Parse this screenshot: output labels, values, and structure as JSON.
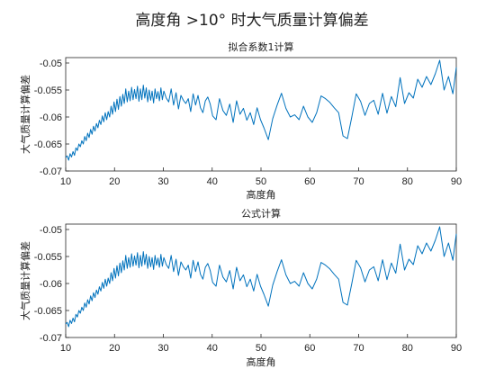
{
  "figure": {
    "title": "高度角 >10° 时大气质量计算偏差"
  },
  "colors": {
    "series": "#0072BD",
    "grid": "#e3e3e3",
    "axes": "#262626",
    "text": "#222222"
  },
  "chart_data": [
    {
      "type": "line",
      "title": "拟合系数1计算",
      "xlabel": "高度角",
      "ylabel": "大气质量计算偏差",
      "xlim": [
        10,
        90
      ],
      "ylim": [
        -0.07,
        -0.049
      ],
      "xticks": [
        "10",
        "20",
        "30",
        "40",
        "50",
        "60",
        "70",
        "80",
        "90"
      ],
      "yticks": [
        "-0.05",
        "-0.055",
        "-0.06",
        "-0.065",
        "-0.07"
      ],
      "grid": true,
      "series": [
        {
          "x": [
            10,
            10.3,
            10.6,
            10.9,
            11.2,
            11.5,
            11.8,
            12.1,
            12.4,
            12.7,
            13,
            13.3,
            13.6,
            13.9,
            14.2,
            14.5,
            14.8,
            15.1,
            15.4,
            15.7,
            16,
            16.3,
            16.6,
            16.9,
            17.2,
            17.5,
            17.8,
            18.1,
            18.4,
            18.7,
            19,
            19.3,
            19.6,
            19.9,
            20.2,
            20.5,
            20.8,
            21.1,
            21.4,
            21.7,
            22,
            22.3,
            22.6,
            22.9,
            23.2,
            23.5,
            23.8,
            24.1,
            24.4,
            24.7,
            25,
            25.3,
            25.6,
            25.9,
            26.2,
            26.5,
            26.8,
            27.1,
            27.4,
            27.7,
            28,
            28.3,
            28.6,
            28.9,
            29.2,
            29.5,
            29.8,
            30.1,
            30.6,
            31.1,
            31.6,
            32.1,
            32.6,
            33.1,
            33.6,
            34.1,
            34.6,
            35.1,
            35.6,
            36.1,
            36.6,
            37.1,
            37.6,
            38.1,
            38.6,
            39.1,
            39.6,
            40.1,
            40.8,
            41.5,
            42.2,
            42.9,
            43.6,
            44.3,
            45,
            45.7,
            46.4,
            47.1,
            47.8,
            48.5,
            49.2,
            49.9,
            50.6,
            51.5,
            52.4,
            53.3,
            54.2,
            55.1,
            56,
            56.9,
            57.8,
            58.7,
            59.6,
            60.5,
            61.4,
            62.3,
            63.2,
            64.1,
            65,
            65.9,
            66.8,
            67.7,
            68.6,
            69.5,
            70.4,
            71.3,
            72.2,
            73.1,
            74,
            74.9,
            75.8,
            76.7,
            77.6,
            78.5,
            79.4,
            80.3,
            81.2,
            82.1,
            83,
            83.9,
            84.8,
            85.7,
            86.6,
            87.5,
            88.4,
            89.3,
            90
          ],
          "y": [
            -0.0675,
            -0.0672,
            -0.068,
            -0.0668,
            -0.0674,
            -0.0664,
            -0.0671,
            -0.0657,
            -0.0662,
            -0.065,
            -0.0655,
            -0.0644,
            -0.065,
            -0.0636,
            -0.0644,
            -0.063,
            -0.0638,
            -0.0623,
            -0.0632,
            -0.0617,
            -0.0626,
            -0.0612,
            -0.062,
            -0.0606,
            -0.0614,
            -0.0598,
            -0.0609,
            -0.0592,
            -0.0605,
            -0.059,
            -0.06,
            -0.058,
            -0.0595,
            -0.0572,
            -0.059,
            -0.0567,
            -0.0586,
            -0.0562,
            -0.058,
            -0.0558,
            -0.0575,
            -0.0548,
            -0.0572,
            -0.0552,
            -0.057,
            -0.0545,
            -0.0568,
            -0.0549,
            -0.0566,
            -0.0543,
            -0.0571,
            -0.0548,
            -0.0568,
            -0.0541,
            -0.0565,
            -0.0546,
            -0.0572,
            -0.055,
            -0.0569,
            -0.0552,
            -0.0574,
            -0.0548,
            -0.0566,
            -0.0553,
            -0.057,
            -0.0546,
            -0.0568,
            -0.0552,
            -0.0565,
            -0.0572,
            -0.0548,
            -0.0578,
            -0.0555,
            -0.0585,
            -0.056,
            -0.0569,
            -0.0575,
            -0.0566,
            -0.059,
            -0.0557,
            -0.0578,
            -0.056,
            -0.0583,
            -0.0592,
            -0.057,
            -0.0563,
            -0.0576,
            -0.0598,
            -0.0605,
            -0.0566,
            -0.0588,
            -0.0597,
            -0.0576,
            -0.061,
            -0.057,
            -0.0595,
            -0.0584,
            -0.0606,
            -0.0592,
            -0.0614,
            -0.0583,
            -0.0605,
            -0.062,
            -0.0642,
            -0.0603,
            -0.0578,
            -0.0556,
            -0.0584,
            -0.06,
            -0.0596,
            -0.0605,
            -0.058,
            -0.06,
            -0.061,
            -0.0592,
            -0.0561,
            -0.0566,
            -0.0573,
            -0.0583,
            -0.0592,
            -0.0635,
            -0.064,
            -0.06,
            -0.0557,
            -0.0571,
            -0.0597,
            -0.0575,
            -0.0569,
            -0.0595,
            -0.0556,
            -0.0593,
            -0.0562,
            -0.0581,
            -0.0527,
            -0.0575,
            -0.0555,
            -0.0565,
            -0.053,
            -0.0545,
            -0.0525,
            -0.054,
            -0.052,
            -0.0495,
            -0.055,
            -0.0525,
            -0.0557,
            -0.0508
          ]
        }
      ]
    },
    {
      "type": "line",
      "title": "公式计算",
      "xlabel": "高度角",
      "ylabel": "大气质量计算偏差",
      "xlim": [
        10,
        90
      ],
      "ylim": [
        -0.07,
        -0.049
      ],
      "xticks": [
        "10",
        "20",
        "30",
        "40",
        "50",
        "60",
        "70",
        "80",
        "90"
      ],
      "yticks": [
        "-0.05",
        "-0.055",
        "-0.06",
        "-0.065",
        "-0.07"
      ],
      "grid": true,
      "series": [
        {
          "x": [
            10,
            10.3,
            10.6,
            10.9,
            11.2,
            11.5,
            11.8,
            12.1,
            12.4,
            12.7,
            13,
            13.3,
            13.6,
            13.9,
            14.2,
            14.5,
            14.8,
            15.1,
            15.4,
            15.7,
            16,
            16.3,
            16.6,
            16.9,
            17.2,
            17.5,
            17.8,
            18.1,
            18.4,
            18.7,
            19,
            19.3,
            19.6,
            19.9,
            20.2,
            20.5,
            20.8,
            21.1,
            21.4,
            21.7,
            22,
            22.3,
            22.6,
            22.9,
            23.2,
            23.5,
            23.8,
            24.1,
            24.4,
            24.7,
            25,
            25.3,
            25.6,
            25.9,
            26.2,
            26.5,
            26.8,
            27.1,
            27.4,
            27.7,
            28,
            28.3,
            28.6,
            28.9,
            29.2,
            29.5,
            29.8,
            30.1,
            30.6,
            31.1,
            31.6,
            32.1,
            32.6,
            33.1,
            33.6,
            34.1,
            34.6,
            35.1,
            35.6,
            36.1,
            36.6,
            37.1,
            37.6,
            38.1,
            38.6,
            39.1,
            39.6,
            40.1,
            40.8,
            41.5,
            42.2,
            42.9,
            43.6,
            44.3,
            45,
            45.7,
            46.4,
            47.1,
            47.8,
            48.5,
            49.2,
            49.9,
            50.6,
            51.5,
            52.4,
            53.3,
            54.2,
            55.1,
            56,
            56.9,
            57.8,
            58.7,
            59.6,
            60.5,
            61.4,
            62.3,
            63.2,
            64.1,
            65,
            65.9,
            66.8,
            67.7,
            68.6,
            69.5,
            70.4,
            71.3,
            72.2,
            73.1,
            74,
            74.9,
            75.8,
            76.7,
            77.6,
            78.5,
            79.4,
            80.3,
            81.2,
            82.1,
            83,
            83.9,
            84.8,
            85.7,
            86.6,
            87.5,
            88.4,
            89.3,
            90
          ],
          "y": [
            -0.0675,
            -0.0672,
            -0.068,
            -0.0668,
            -0.0674,
            -0.0664,
            -0.0671,
            -0.0657,
            -0.0662,
            -0.065,
            -0.0655,
            -0.0644,
            -0.065,
            -0.0636,
            -0.0644,
            -0.063,
            -0.0638,
            -0.0623,
            -0.0632,
            -0.0617,
            -0.0626,
            -0.0612,
            -0.062,
            -0.0606,
            -0.0614,
            -0.0598,
            -0.0609,
            -0.0592,
            -0.0605,
            -0.059,
            -0.06,
            -0.058,
            -0.0595,
            -0.0572,
            -0.059,
            -0.0567,
            -0.0586,
            -0.0562,
            -0.058,
            -0.0558,
            -0.0575,
            -0.0548,
            -0.0572,
            -0.0552,
            -0.057,
            -0.0545,
            -0.0568,
            -0.0549,
            -0.0566,
            -0.0543,
            -0.0571,
            -0.0548,
            -0.0568,
            -0.0541,
            -0.0565,
            -0.0546,
            -0.0572,
            -0.055,
            -0.0569,
            -0.0552,
            -0.0574,
            -0.0548,
            -0.0566,
            -0.0553,
            -0.057,
            -0.0546,
            -0.0568,
            -0.0552,
            -0.0565,
            -0.0572,
            -0.0548,
            -0.0578,
            -0.0555,
            -0.0585,
            -0.056,
            -0.0569,
            -0.0575,
            -0.0566,
            -0.059,
            -0.0557,
            -0.0578,
            -0.056,
            -0.0583,
            -0.0592,
            -0.057,
            -0.0563,
            -0.0576,
            -0.0598,
            -0.0605,
            -0.0566,
            -0.0588,
            -0.0597,
            -0.0576,
            -0.061,
            -0.057,
            -0.0595,
            -0.0584,
            -0.0606,
            -0.0592,
            -0.0614,
            -0.0583,
            -0.0605,
            -0.062,
            -0.0642,
            -0.0603,
            -0.0578,
            -0.0556,
            -0.0584,
            -0.06,
            -0.0596,
            -0.0605,
            -0.058,
            -0.06,
            -0.061,
            -0.0592,
            -0.0561,
            -0.0566,
            -0.0573,
            -0.0583,
            -0.0592,
            -0.0635,
            -0.064,
            -0.06,
            -0.0557,
            -0.0571,
            -0.0597,
            -0.0575,
            -0.0569,
            -0.0595,
            -0.0556,
            -0.0593,
            -0.0562,
            -0.0581,
            -0.0527,
            -0.0575,
            -0.0555,
            -0.0565,
            -0.053,
            -0.0545,
            -0.0525,
            -0.054,
            -0.052,
            -0.0495,
            -0.055,
            -0.0525,
            -0.0557,
            -0.0508
          ]
        }
      ]
    }
  ]
}
